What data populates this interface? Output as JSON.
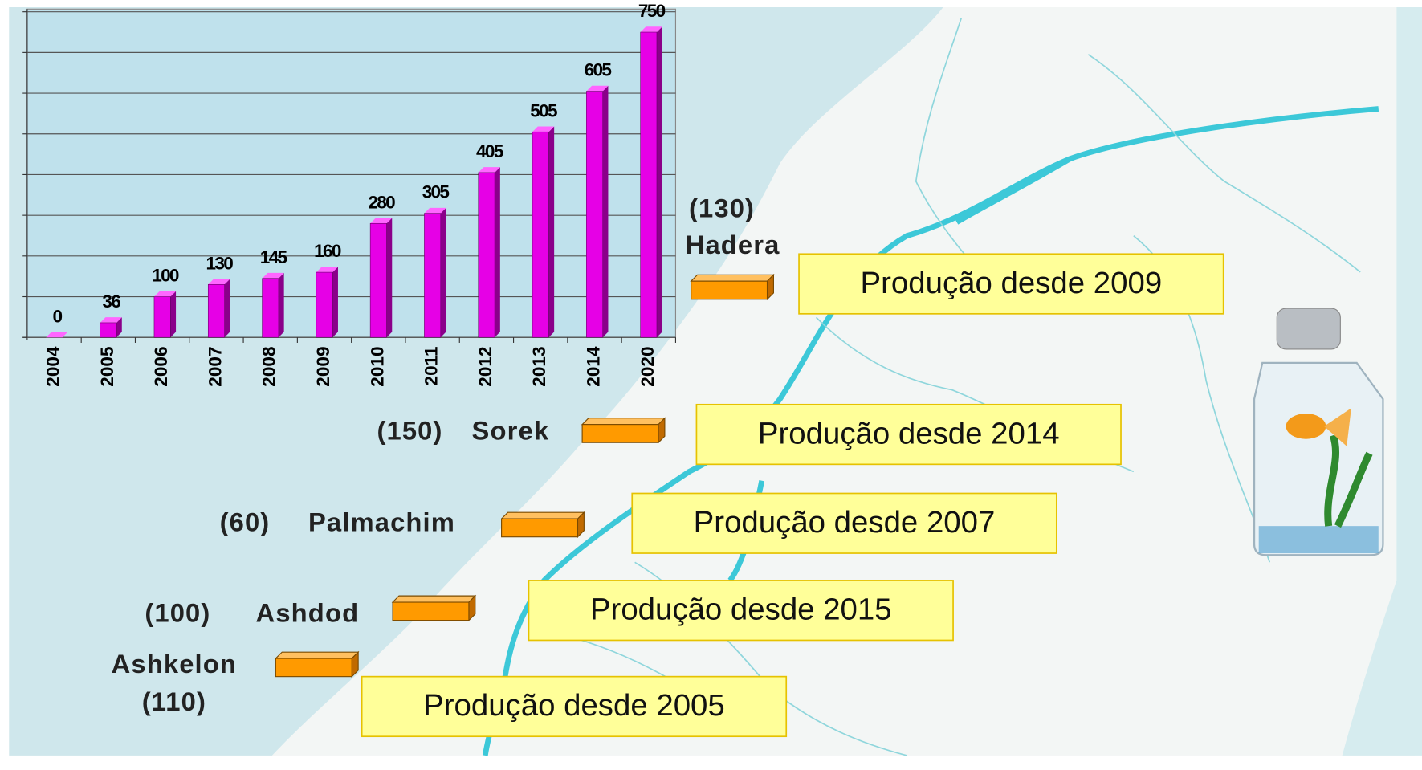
{
  "chart_data": {
    "type": "bar",
    "categories": [
      "2004",
      "2005",
      "2006",
      "2007",
      "2008",
      "2009",
      "2010",
      "2011",
      "2012",
      "2013",
      "2014",
      "2020"
    ],
    "values": [
      0,
      36,
      100,
      130,
      145,
      160,
      280,
      305,
      405,
      505,
      605,
      750
    ],
    "color": "#e600e6",
    "ylim": [
      0,
      800
    ],
    "yticks": [
      0,
      100,
      200,
      300,
      400,
      500,
      600,
      700,
      800
    ],
    "grid": true
  },
  "plants": [
    {
      "capacity": "(130)",
      "name": "Hadera",
      "production": "Produção desde 2009"
    },
    {
      "capacity": "(150)",
      "name": "Sorek",
      "production": "Produção desde 2014"
    },
    {
      "capacity": "(60)",
      "name": "Palmachim",
      "production": "Produção desde 2007"
    },
    {
      "capacity": "(100)",
      "name": "Ashdod",
      "production": "Produção desde 2015"
    },
    {
      "capacity": "(110)",
      "name": "Ashkelon",
      "production": "Produção desde 2005"
    }
  ]
}
